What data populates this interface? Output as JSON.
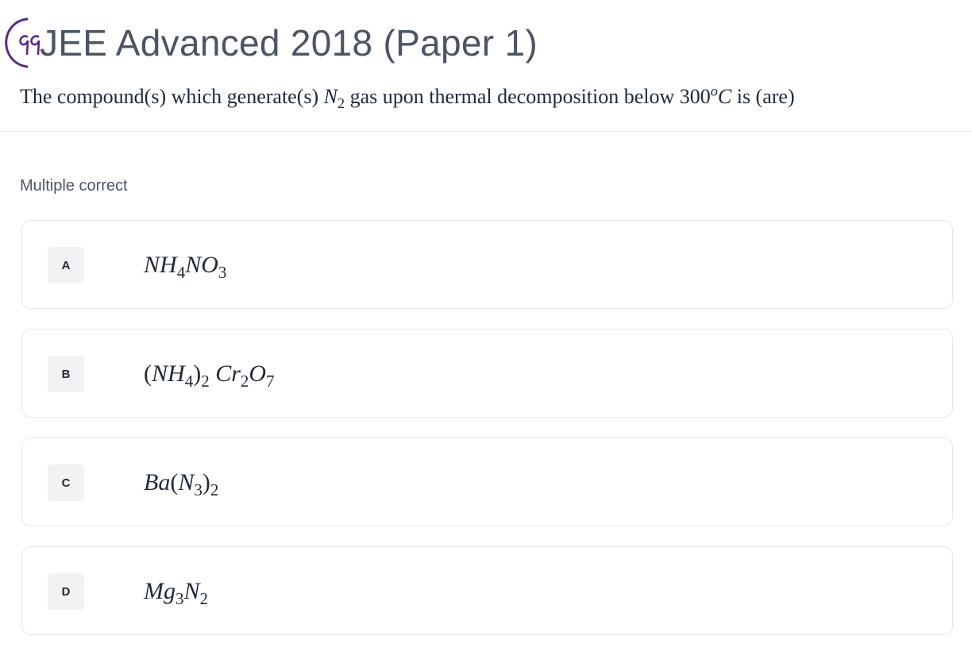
{
  "header": {
    "handwritten_number": "99",
    "title": "JEE Advanced 2018 (Paper 1)"
  },
  "question": {
    "text_before": "The compound(s) which generate(s) ",
    "n2_symbol": "N",
    "n2_sub": "2",
    "text_middle": " gas upon thermal decomposition below ",
    "temp_value": "300",
    "temp_sup": "o",
    "temp_unit": "C",
    "text_after": " is (are)"
  },
  "question_type": "Multiple correct",
  "options": [
    {
      "letter": "A",
      "formula_plain": "NH4NO3"
    },
    {
      "letter": "B",
      "formula_plain": "(NH4)2 Cr2O7"
    },
    {
      "letter": "C",
      "formula_plain": "Ba(N3)2"
    },
    {
      "letter": "D",
      "formula_plain": "Mg3N2"
    }
  ],
  "colors": {
    "title": "#4b5563",
    "text": "#1f2937",
    "border": "#e5e7eb",
    "letter_bg": "#f1f2f4",
    "handwriting": "#5b2a86"
  }
}
